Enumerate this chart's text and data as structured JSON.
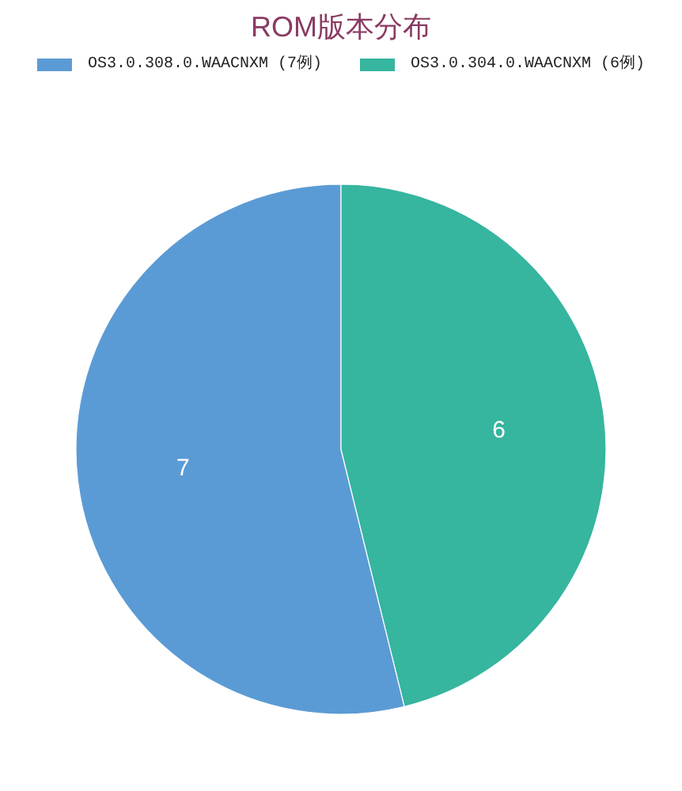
{
  "chart_data": {
    "type": "pie",
    "title": "ROM版本分布",
    "categories": [
      "OS3.0.308.0.WAACNXM (7例)",
      "OS3.0.304.0.WAACNXM (6例)"
    ],
    "values": [
      7,
      6
    ],
    "colors": [
      "#5b9bd5",
      "#36b59f"
    ],
    "data_labels": true,
    "legend": "top"
  }
}
